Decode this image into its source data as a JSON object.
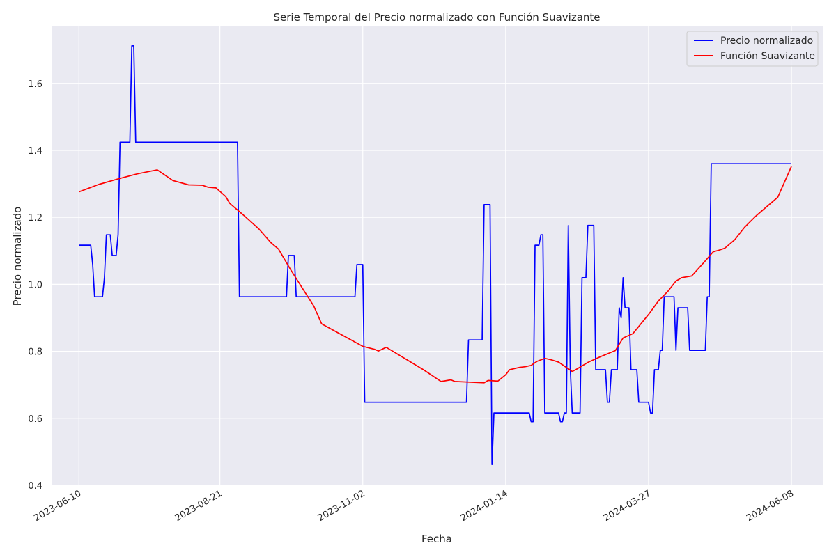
{
  "chart_data": {
    "type": "line",
    "title": "Serie Temporal del Precio normalizado con Función Suavizante",
    "xlabel": "Fecha",
    "ylabel": "Precio normalizado",
    "xlim": [
      "2023-05-27",
      "2024-06-24"
    ],
    "ylim": [
      0.4,
      1.77
    ],
    "x_ticks": [
      "2023-06-10",
      "2023-08-21",
      "2023-11-02",
      "2024-01-14",
      "2024-03-27",
      "2024-06-08"
    ],
    "y_ticks": [
      0.4,
      0.6,
      0.8,
      1.0,
      1.2,
      1.4,
      1.6
    ],
    "y_tick_labels": [
      "0.4",
      "0.6",
      "0.8",
      "1.0",
      "1.2",
      "1.4",
      "1.6"
    ],
    "grid": true,
    "legend_position": "top-right",
    "colors": {
      "plot_background": "#eaeaf2",
      "grid": "#ffffff"
    },
    "series": [
      {
        "name": "Precio normalizado",
        "color": "#0000ff",
        "points": [
          [
            "2023-06-10",
            1.117
          ],
          [
            "2023-06-16",
            1.117
          ],
          [
            "2023-06-17",
            1.06
          ],
          [
            "2023-06-18",
            0.963
          ],
          [
            "2023-06-22",
            0.963
          ],
          [
            "2023-06-23",
            1.02
          ],
          [
            "2023-06-24",
            1.148
          ],
          [
            "2023-06-26",
            1.148
          ],
          [
            "2023-06-27",
            1.086
          ],
          [
            "2023-06-29",
            1.086
          ],
          [
            "2023-06-30",
            1.148
          ],
          [
            "2023-07-01",
            1.424
          ],
          [
            "2023-07-06",
            1.424
          ],
          [
            "2023-07-07",
            1.712
          ],
          [
            "2023-07-08",
            1.712
          ],
          [
            "2023-07-09",
            1.424
          ],
          [
            "2023-08-30",
            1.424
          ],
          [
            "2023-08-31",
            0.963
          ],
          [
            "2023-09-24",
            0.963
          ],
          [
            "2023-09-25",
            1.086
          ],
          [
            "2023-09-28",
            1.086
          ],
          [
            "2023-09-29",
            0.963
          ],
          [
            "2023-10-29",
            0.963
          ],
          [
            "2023-10-30",
            1.059
          ],
          [
            "2023-11-02",
            1.059
          ],
          [
            "2023-11-03",
            0.648
          ],
          [
            "2023-12-25",
            0.648
          ],
          [
            "2023-12-26",
            0.834
          ],
          [
            "2024-01-02",
            0.834
          ],
          [
            "2024-01-03",
            1.238
          ],
          [
            "2024-01-06",
            1.238
          ],
          [
            "2024-01-07",
            0.462
          ],
          [
            "2024-01-08",
            0.616
          ],
          [
            "2024-01-26",
            0.616
          ],
          [
            "2024-01-27",
            0.59
          ],
          [
            "2024-01-28",
            0.59
          ],
          [
            "2024-01-29",
            1.117
          ],
          [
            "2024-01-31",
            1.117
          ],
          [
            "2024-02-01",
            1.148
          ],
          [
            "2024-02-02",
            1.148
          ],
          [
            "2024-02-03",
            0.616
          ],
          [
            "2024-02-10",
            0.616
          ],
          [
            "2024-02-11",
            0.59
          ],
          [
            "2024-02-12",
            0.59
          ],
          [
            "2024-02-13",
            0.616
          ],
          [
            "2024-02-14",
            0.616
          ],
          [
            "2024-02-15",
            1.176
          ],
          [
            "2024-02-16",
            0.75
          ],
          [
            "2024-02-17",
            0.616
          ],
          [
            "2024-02-21",
            0.616
          ],
          [
            "2024-02-22",
            1.02
          ],
          [
            "2024-02-24",
            1.02
          ],
          [
            "2024-02-25",
            1.176
          ],
          [
            "2024-02-28",
            1.176
          ],
          [
            "2024-02-29",
            0.745
          ],
          [
            "2024-03-05",
            0.745
          ],
          [
            "2024-03-06",
            0.648
          ],
          [
            "2024-03-07",
            0.648
          ],
          [
            "2024-03-08",
            0.745
          ],
          [
            "2024-03-11",
            0.745
          ],
          [
            "2024-03-12",
            0.93
          ],
          [
            "2024-03-13",
            0.9
          ],
          [
            "2024-03-14",
            1.02
          ],
          [
            "2024-03-15",
            0.93
          ],
          [
            "2024-03-17",
            0.93
          ],
          [
            "2024-03-18",
            0.745
          ],
          [
            "2024-03-21",
            0.745
          ],
          [
            "2024-03-22",
            0.648
          ],
          [
            "2024-03-27",
            0.648
          ],
          [
            "2024-03-28",
            0.616
          ],
          [
            "2024-03-29",
            0.616
          ],
          [
            "2024-03-30",
            0.745
          ],
          [
            "2024-04-01",
            0.745
          ],
          [
            "2024-04-02",
            0.803
          ],
          [
            "2024-04-03",
            0.803
          ],
          [
            "2024-04-04",
            0.963
          ],
          [
            "2024-04-09",
            0.963
          ],
          [
            "2024-04-10",
            0.803
          ],
          [
            "2024-04-11",
            0.93
          ],
          [
            "2024-04-16",
            0.93
          ],
          [
            "2024-04-17",
            0.803
          ],
          [
            "2024-04-25",
            0.803
          ],
          [
            "2024-04-26",
            0.963
          ],
          [
            "2024-04-27",
            0.963
          ],
          [
            "2024-04-28",
            1.36
          ],
          [
            "2024-06-08",
            1.36
          ]
        ]
      },
      {
        "name": "Función Suavizante",
        "color": "#ff0000",
        "points": [
          [
            "2023-06-10",
            1.276
          ],
          [
            "2023-06-20",
            1.298
          ],
          [
            "2023-06-30",
            1.315
          ],
          [
            "2023-07-10",
            1.33
          ],
          [
            "2023-07-20",
            1.342
          ],
          [
            "2023-07-28",
            1.31
          ],
          [
            "2023-08-05",
            1.297
          ],
          [
            "2023-08-12",
            1.296
          ],
          [
            "2023-08-15",
            1.29
          ],
          [
            "2023-08-19",
            1.288
          ],
          [
            "2023-08-24",
            1.262
          ],
          [
            "2023-08-26",
            1.242
          ],
          [
            "2023-09-02",
            1.207
          ],
          [
            "2023-09-10",
            1.165
          ],
          [
            "2023-09-16",
            1.125
          ],
          [
            "2023-09-20",
            1.105
          ],
          [
            "2023-09-26",
            1.045
          ],
          [
            "2023-10-02",
            0.99
          ],
          [
            "2023-10-08",
            0.935
          ],
          [
            "2023-10-12",
            0.882
          ],
          [
            "2023-10-22",
            0.85
          ],
          [
            "2023-11-02",
            0.815
          ],
          [
            "2023-11-08",
            0.806
          ],
          [
            "2023-11-10",
            0.801
          ],
          [
            "2023-11-14",
            0.812
          ],
          [
            "2023-12-03",
            0.745
          ],
          [
            "2023-12-12",
            0.71
          ],
          [
            "2023-12-17",
            0.715
          ],
          [
            "2023-12-19",
            0.71
          ],
          [
            "2024-01-03",
            0.706
          ],
          [
            "2024-01-05",
            0.713
          ],
          [
            "2024-01-10",
            0.711
          ],
          [
            "2024-01-14",
            0.73
          ],
          [
            "2024-01-16",
            0.745
          ],
          [
            "2024-01-21",
            0.752
          ],
          [
            "2024-01-24",
            0.754
          ],
          [
            "2024-01-27",
            0.758
          ],
          [
            "2024-01-30",
            0.77
          ],
          [
            "2024-02-03",
            0.779
          ],
          [
            "2024-02-06",
            0.775
          ],
          [
            "2024-02-10",
            0.768
          ],
          [
            "2024-02-17",
            0.74
          ],
          [
            "2024-02-19",
            0.746
          ],
          [
            "2024-02-25",
            0.767
          ],
          [
            "2024-03-02",
            0.783
          ],
          [
            "2024-03-07",
            0.795
          ],
          [
            "2024-03-10",
            0.802
          ],
          [
            "2024-03-14",
            0.84
          ],
          [
            "2024-03-19",
            0.853
          ],
          [
            "2024-03-27",
            0.91
          ],
          [
            "2024-04-01",
            0.95
          ],
          [
            "2024-04-06",
            0.98
          ],
          [
            "2024-04-10",
            1.01
          ],
          [
            "2024-04-13",
            1.02
          ],
          [
            "2024-04-18",
            1.025
          ],
          [
            "2024-04-25",
            1.07
          ],
          [
            "2024-04-29",
            1.097
          ],
          [
            "2024-05-02",
            1.102
          ],
          [
            "2024-05-05",
            1.108
          ],
          [
            "2024-05-10",
            1.133
          ],
          [
            "2024-05-15",
            1.17
          ],
          [
            "2024-05-21",
            1.205
          ],
          [
            "2024-05-25",
            1.225
          ],
          [
            "2024-06-01",
            1.26
          ],
          [
            "2024-06-08",
            1.352
          ]
        ]
      }
    ]
  }
}
